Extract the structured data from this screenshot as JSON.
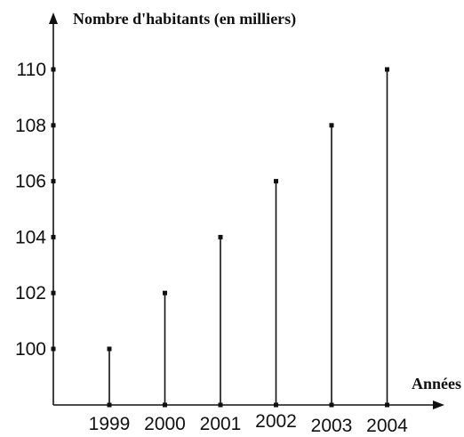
{
  "chart_data": {
    "type": "bar",
    "style": "stem",
    "ylabel": "Nombre d'habitants (en milliers)",
    "xlabel": "Années",
    "categories": [
      "1999",
      "2000",
      "2001",
      "2002",
      "2003",
      "2004"
    ],
    "values": [
      100,
      102,
      104,
      106,
      108,
      110
    ],
    "y_ticks": [
      "100",
      "102",
      "104",
      "106",
      "108",
      "110"
    ],
    "ylim": [
      98.8,
      111
    ],
    "grid": false,
    "legend": "none"
  }
}
